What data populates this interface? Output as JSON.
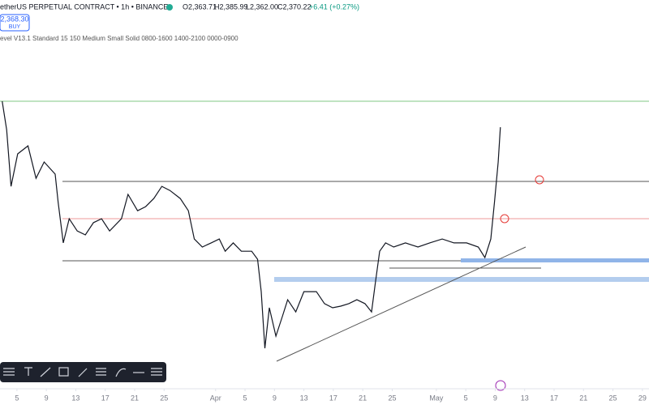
{
  "header": {
    "symbol": "etherUS PERPETUAL CONTRACT • 1h • BINANCE",
    "open": "O2,363.71",
    "high": "H2,385.99",
    "low": "L2,362.00",
    "close": "C2,370.22",
    "change": "+6.41 (+0.27%)",
    "price": "2,368.30",
    "action": "BUY",
    "indicator": "evel V13.1 Standard 15 150 Medium Small Solid 0800-1600 1400-2100 0000-0900"
  },
  "chart_data": {
    "type": "line",
    "color": "#131722",
    "x": [
      2.0,
      2.6,
      3.2,
      4.1,
      5.5,
      6.6,
      7.7,
      9.2,
      9.6,
      10.3,
      11.1,
      12.2,
      13.3,
      14.4,
      15.5,
      16.6,
      18.2,
      19.1,
      20.4,
      21.5,
      22.6,
      23.7,
      24.8,
      26.2,
      27.3,
      28.1,
      29.2,
      30.4,
      31.5,
      32.3,
      33.4,
      34.5,
      35.9,
      36.7,
      37.2,
      37.7,
      38.3,
      39.2,
      40.1,
      40.8,
      41.9,
      43.0,
      44.7,
      45.8,
      46.9,
      48.0,
      49.1,
      50.2,
      51.3,
      52.2,
      52.7,
      53.3,
      54.1,
      55.2,
      56.8,
      58.5,
      60.1,
      61.8,
      63.4,
      65.1,
      66.7,
      67.6,
      68.4,
      68.9,
      69.4,
      69.7
    ],
    "values": [
      2483,
      2359,
      2113,
      2254,
      2289,
      2148,
      2219,
      2166,
      2043,
      1867,
      1972,
      1919,
      1902,
      1955,
      1972,
      1919,
      1972,
      2078,
      2007,
      2025,
      2060,
      2113,
      2095,
      2060,
      2007,
      1884,
      1849,
      1867,
      1884,
      1831,
      1867,
      1831,
      1831,
      1796,
      1655,
      1409,
      1585,
      1462,
      1550,
      1620,
      1567,
      1655,
      1655,
      1603,
      1585,
      1592,
      1603,
      1620,
      1603,
      1567,
      1691,
      1831,
      1867,
      1849,
      1867,
      1849,
      1867,
      1884,
      1867,
      1867,
      1849,
      1803,
      1884,
      2043,
      2219,
      2370
    ],
    "xlim": [
      1.7,
      89.9
    ],
    "ylim": [
      1233,
      2923
    ],
    "xticks": [
      {
        "value": 4,
        "label": "5"
      },
      {
        "value": 8,
        "label": "9"
      },
      {
        "value": 12,
        "label": "13"
      },
      {
        "value": 16,
        "label": "17"
      },
      {
        "value": 20,
        "label": "21"
      },
      {
        "value": 24,
        "label": "25"
      },
      {
        "value": 31,
        "label": "Apr"
      },
      {
        "value": 35,
        "label": "5"
      },
      {
        "value": 39,
        "label": "9"
      },
      {
        "value": 43,
        "label": "13"
      },
      {
        "value": 47,
        "label": "17"
      },
      {
        "value": 51,
        "label": "21"
      },
      {
        "value": 55,
        "label": "25"
      },
      {
        "value": 61,
        "label": "May"
      },
      {
        "value": 65,
        "label": "5"
      },
      {
        "value": 69,
        "label": "9"
      },
      {
        "value": 73,
        "label": "13"
      },
      {
        "value": 77,
        "label": "17"
      },
      {
        "value": 81,
        "label": "21"
      },
      {
        "value": 85,
        "label": "25"
      },
      {
        "value": 89,
        "label": "29"
      }
    ]
  }
}
